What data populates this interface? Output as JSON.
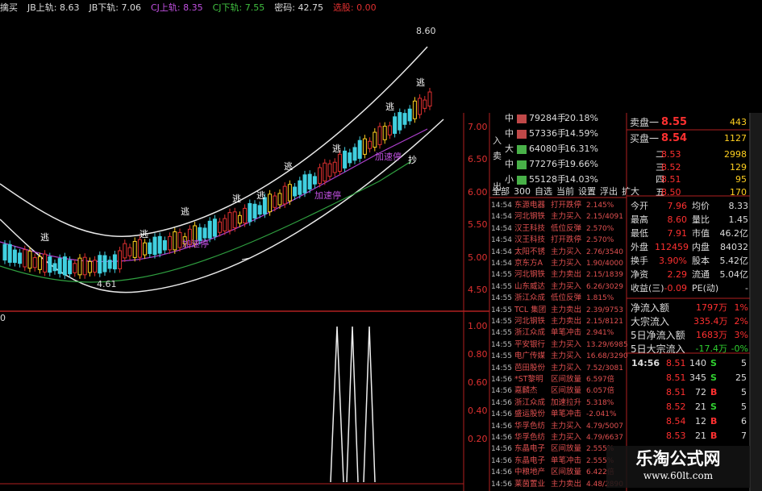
{
  "indicator_bar": [
    "擒买",
    "JB上轨: 8.63",
    "JB下轨: 7.06",
    "CJ上轨: 8.35",
    "CJ下轨: 7.55",
    "密码: 42.75",
    "选股: 0.00"
  ],
  "main_chart": {
    "high_label": "8.60",
    "low_label": "4.61",
    "signals": [
      "逃",
      "逃",
      "逃",
      "逃",
      "逃",
      "逃",
      "逃",
      "逃",
      "逃"
    ],
    "buy_signal": "抄",
    "accel_labels": [
      "加速停",
      "加速停",
      "加速停"
    ],
    "price_axis": [
      "7.00",
      "6.50",
      "6.00",
      "5.50",
      "5.00",
      "4.50"
    ],
    "lower_top_label": "0",
    "lower_axis": [
      "1.00",
      "0.80",
      "0.60",
      "0.40",
      "0.20"
    ]
  },
  "flow": {
    "rows": [
      {
        "size": "中",
        "volume": "79284手",
        "pct": "20.18%"
      },
      {
        "side": "入",
        "size": "中",
        "volume": "57336手",
        "pct": "14.59%"
      },
      {
        "side": "卖",
        "size": "大",
        "volume": "64080手",
        "pct": "16.31%"
      },
      {
        "size": "中",
        "volume": "77276手",
        "pct": "19.66%"
      },
      {
        "side": "出",
        "size": "小",
        "volume": "55128手",
        "pct": "14.03%"
      }
    ],
    "tabs": [
      "全部",
      "300",
      "自选",
      "当前",
      "设置",
      "浮出",
      "扩大"
    ]
  },
  "tape": [
    [
      "14:54",
      "东源电器",
      "打开跌停",
      "2.145%"
    ],
    [
      "14:54",
      "河北钢铁",
      "主力买入",
      "2.15/4091"
    ],
    [
      "14:54",
      "汉王科技",
      "低位反弹",
      "2.570%"
    ],
    [
      "14:54",
      "汉王科技",
      "打开跌停",
      "2.570%"
    ],
    [
      "14:54",
      "太阳不锈",
      "主力买入",
      "2.76/3540"
    ],
    [
      "14:54",
      "京东方A",
      "主力买入",
      "1.90/4000"
    ],
    [
      "14:55",
      "河北钢铁",
      "主力卖出",
      "2.15/1839"
    ],
    [
      "14:55",
      "山东威达",
      "主力买入",
      "6.26/3029"
    ],
    [
      "14:55",
      "浙江众成",
      "低位反弹",
      "1.815%"
    ],
    [
      "14:55",
      "TCL 集团",
      "主力卖出",
      "2.39/9753"
    ],
    [
      "14:55",
      "河北钢铁",
      "主力卖出",
      "2.15/8121"
    ],
    [
      "14:55",
      "浙江众成",
      "单笔冲击",
      "2.941%"
    ],
    [
      "14:55",
      "平安银行",
      "主力买入",
      "13.29/6985"
    ],
    [
      "14:55",
      "电广传媒",
      "主力买入",
      "16.68/3290"
    ],
    [
      "14:55",
      "芭田股份",
      "主力买入",
      "7.52/3081"
    ],
    [
      "14:56",
      "*ST黎明",
      "区间放量",
      "6.597倍"
    ],
    [
      "14:56",
      "嘉麟杰",
      "区间放量",
      "6.057倍"
    ],
    [
      "14:56",
      "浙江众成",
      "加速拉升",
      "5.318%"
    ],
    [
      "14:56",
      "盛运股份",
      "单笔冲击",
      "-2.041%"
    ],
    [
      "14:56",
      "华孚色纺",
      "主力买入",
      "4.79/5007"
    ],
    [
      "14:56",
      "华孚色纺",
      "主力买入",
      "4.79/6637"
    ],
    [
      "14:56",
      "东晶电子",
      "区间放量",
      "2.555%"
    ],
    [
      "14:56",
      "东晶电子",
      "单笔冲击",
      "2.555%"
    ],
    [
      "14:56",
      "中粮地产",
      "区间放量",
      "6.422倍"
    ],
    [
      "14:56",
      "莱茵置业",
      "主力卖出",
      "4.48/2890"
    ]
  ],
  "quote": {
    "book": [
      [
        "卖盘一",
        "8.55",
        "443"
      ],
      [
        "买盘一",
        "8.54",
        "1127"
      ],
      [
        "二",
        "8.53",
        "2998"
      ],
      [
        "三",
        "8.52",
        "129"
      ],
      [
        "四",
        "8.51",
        "95"
      ],
      [
        "五",
        "8.50",
        "170"
      ]
    ],
    "stats": [
      [
        "今开",
        "7.96",
        "均价",
        "8.33"
      ],
      [
        "最高",
        "8.60",
        "量比",
        "1.45"
      ],
      [
        "最低",
        "7.91",
        "市值",
        "46.2亿"
      ],
      [
        "外盘",
        "112459",
        "内盘",
        "84032"
      ],
      [
        "换手",
        "3.90%",
        "股本",
        "5.42亿"
      ],
      [
        "净资",
        "2.29",
        "流通",
        "5.04亿"
      ],
      [
        "收益(三)",
        "-0.09",
        "PE(动)",
        "-"
      ]
    ],
    "flows": [
      [
        "净流入额",
        "1797万",
        "1%"
      ],
      [
        "大宗流入",
        "335.4万",
        "2%"
      ],
      [
        "5日净流入额",
        "1683万",
        "3%"
      ],
      [
        "5日大宗流入",
        "-17.4万",
        "-0%"
      ]
    ],
    "ticks": [
      [
        "14:56",
        "8.51",
        "140",
        "S",
        "5"
      ],
      [
        "8.51",
        "345",
        "S",
        "25"
      ],
      [
        "8.51",
        "72",
        "B",
        "5"
      ],
      [
        "8.52",
        "21",
        "S",
        "5"
      ],
      [
        "8.54",
        "12",
        "B",
        "6"
      ],
      [
        "8.53",
        "21",
        "B",
        "7"
      ]
    ]
  },
  "watermark": {
    "title": "乐淘公式网",
    "url": "www.60lt.com"
  }
}
